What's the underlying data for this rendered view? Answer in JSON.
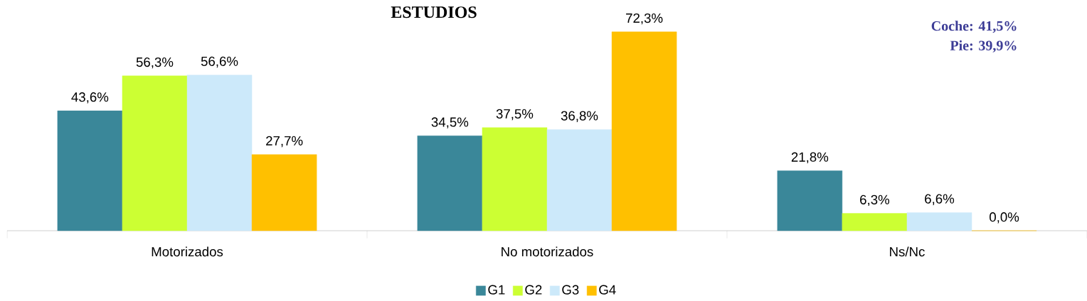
{
  "chart_data": {
    "type": "bar",
    "title": "ESTUDIOS",
    "categories": [
      "Motorizados",
      "No motorizados",
      "Ns/Nc"
    ],
    "series": [
      {
        "name": "G1",
        "color": "#3a8799",
        "values": [
          43.6,
          34.5,
          21.8
        ],
        "value_labels": [
          "43,6%",
          "34,5%",
          "21,8%"
        ]
      },
      {
        "name": "G2",
        "color": "#ccff33",
        "values": [
          56.3,
          37.5,
          6.3
        ],
        "value_labels": [
          "56,3%",
          "37,5%",
          "6,3%"
        ]
      },
      {
        "name": "G3",
        "color": "#cce9fa",
        "values": [
          56.6,
          36.8,
          6.6
        ],
        "value_labels": [
          "56,6%",
          "36,8%",
          "6,6%"
        ]
      },
      {
        "name": "G4",
        "color": "#ffc000",
        "values": [
          27.7,
          72.3,
          0.0
        ],
        "value_labels": [
          "27,7%",
          "72,3%",
          "0,0%"
        ]
      }
    ],
    "legend": "bottom",
    "annotations": [
      "Coche: 41,5%",
      "Pie: 39,9%"
    ]
  }
}
